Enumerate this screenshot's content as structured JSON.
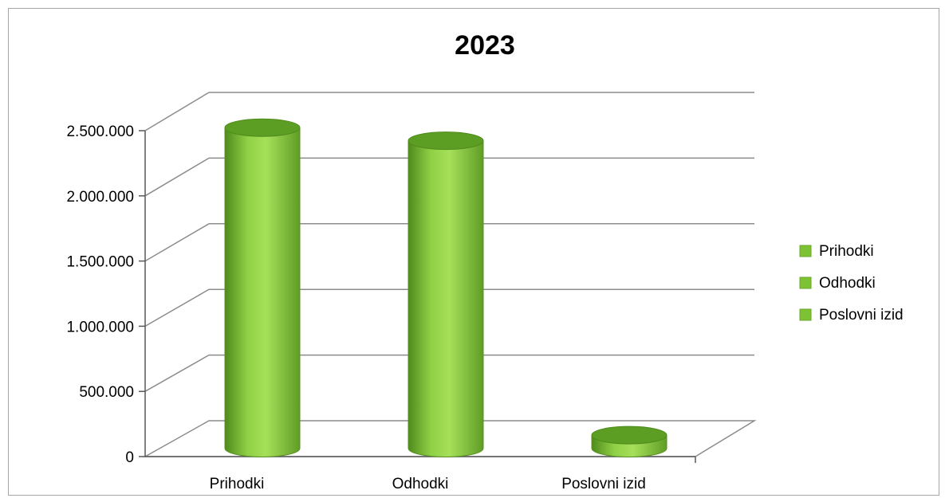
{
  "chart_data": {
    "type": "bar",
    "style": "3d-cylinder",
    "title": "2023",
    "xlabel": "",
    "ylabel": "",
    "categories": [
      "Prihodki",
      "Odhodki",
      "Poslovni izid"
    ],
    "series": [
      {
        "name": "Prihodki",
        "values": [
          2450000,
          null,
          null
        ]
      },
      {
        "name": "Odhodki",
        "values": [
          null,
          2350000,
          null
        ]
      },
      {
        "name": "Poslovni izid",
        "values": [
          null,
          null,
          100000
        ]
      }
    ],
    "ylim": [
      0,
      2500000
    ],
    "yticks": [
      0,
      500000,
      1000000,
      1500000,
      2000000,
      2500000
    ],
    "ytick_labels": [
      "0",
      "500.000",
      "1.000.000",
      "1.500.000",
      "2.000.000",
      "2.500.000"
    ],
    "grid": true,
    "legend_position": "right",
    "legend": [
      "Prihodki",
      "Odhodki",
      "Poslovni izid"
    ],
    "colors": {
      "bar": "#7dc234",
      "bar_light": "#a6e05a",
      "bar_dark": "#4f8a1c",
      "top": "#5c9e23",
      "grid": "#8c8c8c",
      "frame": "#a6a6a6"
    }
  }
}
